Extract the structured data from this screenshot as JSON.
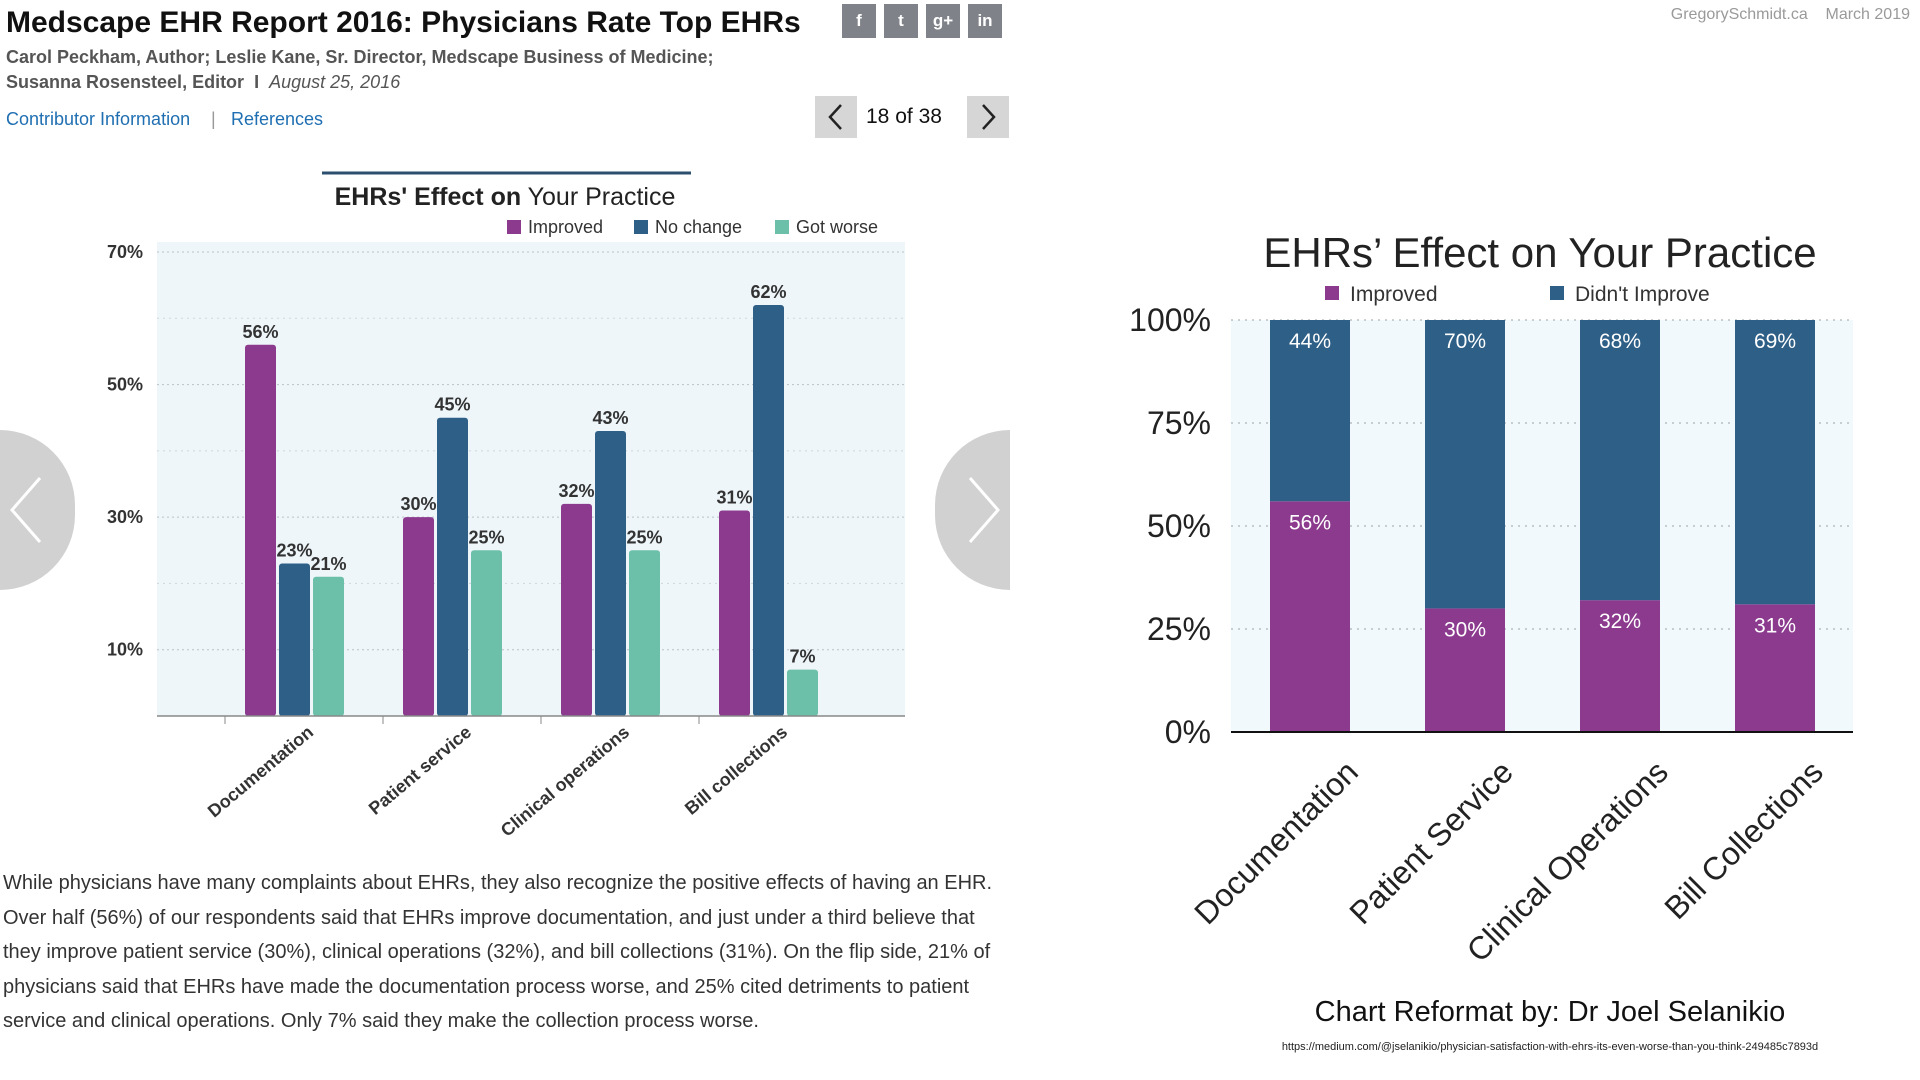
{
  "article": {
    "title": "Medscape EHR Report 2016: Physicians Rate Top EHRs",
    "authors_line1": "Carol Peckham, Author; Leslie Kane, Sr. Director, Medscape Business of Medicine;",
    "authors_line2": "Susanna Rosensteel, Editor",
    "separator": "I",
    "date": "August 25, 2016",
    "contributor_link": "Contributor Information",
    "link_separator": "|",
    "references_link": "References",
    "social_icons": [
      "facebook-icon",
      "twitter-icon",
      "google-plus-icon",
      "linkedin-icon"
    ],
    "social_labels": [
      "f",
      "t",
      "g+",
      "in"
    ],
    "pagination": {
      "current": "18",
      "of_label": "of",
      "total": "38"
    },
    "body_text": "While physicians have many complaints about EHRs, they also recognize the positive effects of having an EHR. Over half (56%) of our respondents said that EHRs improve documentation, and just under a third believe that they improve patient service (30%), clinical operations (32%), and bill collections (31%). On the flip side, 21% of physicians said that EHRs have made the documentation process worse, and 25% cited detriments to patient service and clinical operations. Only 7% said they make the collection process worse."
  },
  "watermark": {
    "site": "GregorySchmidt.ca",
    "date": "March 2019"
  },
  "credit": "Chart Reformat by: Dr Joel Selanikio",
  "source_url": "https://medium.com/@jselanikio/physician-satisfaction-with-ehrs-its-even-worse-than-you-think-249485c7893d",
  "colors": {
    "improved": "#8b3a8e",
    "no_change": "#2e5f86",
    "got_worse": "#6cc0aa",
    "link": "#1f6fb2"
  },
  "chart_data": [
    {
      "type": "bar",
      "title_bold": "EHRs' Effect on",
      "title_rest": "Your Practice",
      "categories": [
        "Documentation",
        "Patient service",
        "Clinical operations",
        "Bill collections"
      ],
      "series": [
        {
          "name": "Improved",
          "values": [
            56,
            30,
            32,
            31
          ]
        },
        {
          "name": "No change",
          "values": [
            23,
            45,
            43,
            62
          ]
        },
        {
          "name": "Got worse",
          "values": [
            21,
            25,
            25,
            7
          ]
        }
      ],
      "y_ticks": [
        "10%",
        "30%",
        "50%",
        "70%"
      ],
      "ylim": [
        0,
        70
      ],
      "legend_position": "top-right",
      "grid": true
    },
    {
      "type": "bar",
      "stacked": true,
      "title": "EHRs’ Effect on Your Practice",
      "categories": [
        "Documentation",
        "Patient Service",
        "Clinical Operations",
        "Bill Collections"
      ],
      "series": [
        {
          "name": "Improved",
          "values": [
            56,
            30,
            32,
            31
          ]
        },
        {
          "name": "Didn't Improve",
          "values": [
            44,
            70,
            68,
            69
          ]
        }
      ],
      "y_ticks": [
        "0%",
        "25%",
        "50%",
        "75%",
        "100%"
      ],
      "ylim": [
        0,
        100
      ],
      "legend_position": "top",
      "grid": true
    }
  ]
}
